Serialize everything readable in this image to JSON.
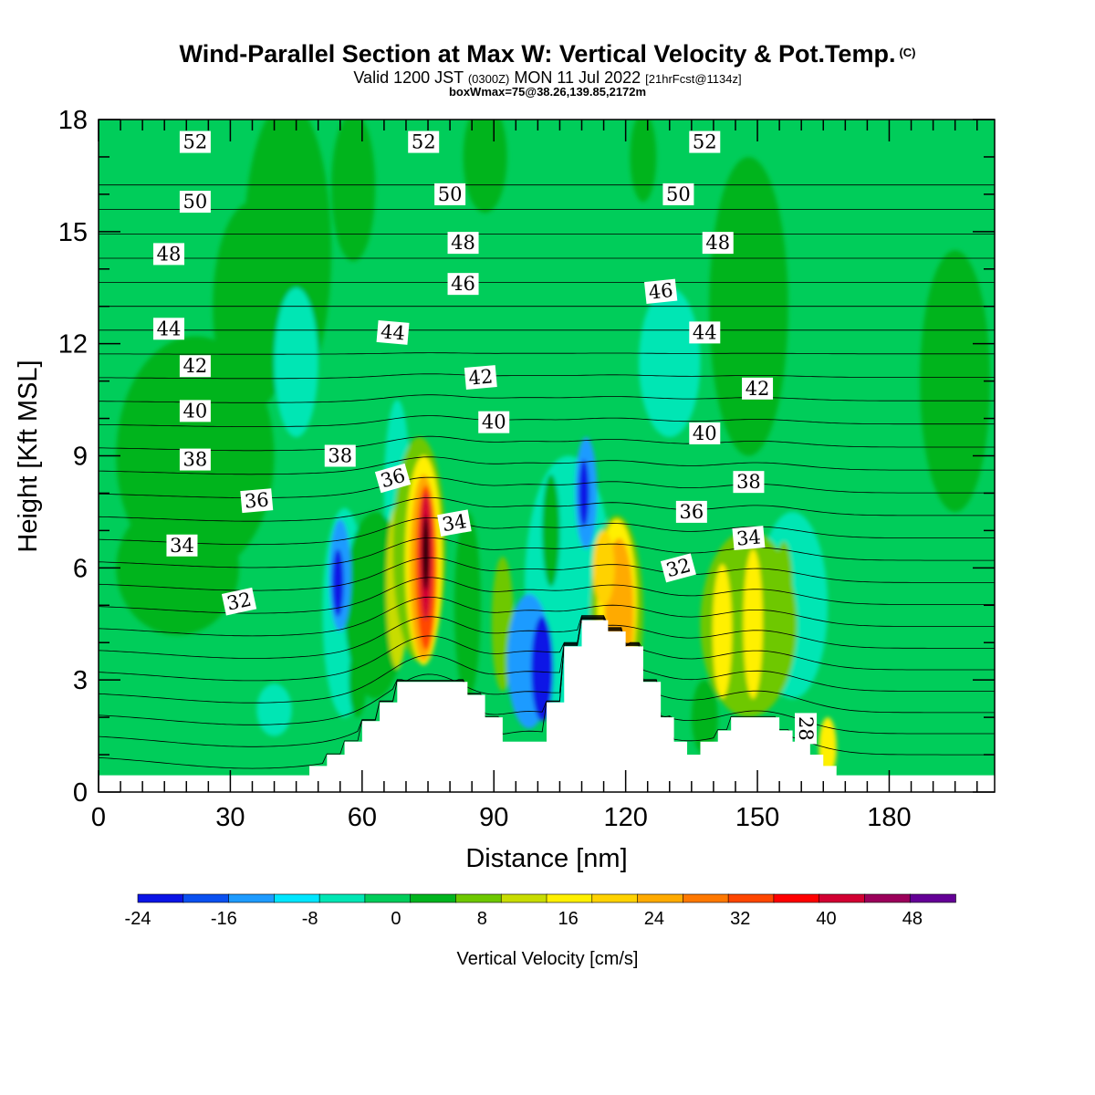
{
  "header": {
    "title_main": "Wind-Parallel Section at Max W: Vertical Velocity & Pot.Temp.",
    "title_c": "(C)",
    "subtitle_a": "Valid 1200 JST",
    "subtitle_b": "(0300Z)",
    "subtitle_c": "MON 11 Jul 2022",
    "subtitle_d": "[21hrFcst@1134z]",
    "subtitle2": "boxWmax=75@38.26,139.85,2172m"
  },
  "chart_data": {
    "type": "heatmap",
    "title": "Wind-Parallel Section at Max W: Vertical Velocity & Pot.Temp. (C)",
    "xlabel": "Distance [nm]",
    "ylabel": "Height [Kft MSL]",
    "xlim": [
      0,
      204
    ],
    "ylim": [
      0,
      18
    ],
    "xticks": [
      0,
      30,
      60,
      90,
      120,
      150,
      180
    ],
    "yticks": [
      0,
      3,
      6,
      9,
      12,
      15,
      18
    ],
    "colorbar": {
      "label": "Vertical Velocity [cm/s]",
      "ticks": [
        -24,
        -16,
        -8,
        0,
        8,
        16,
        24,
        32,
        40,
        48
      ],
      "levels": [
        -24,
        -20,
        -16,
        -12,
        -8,
        -4,
        0,
        4,
        8,
        12,
        16,
        20,
        24,
        28,
        32,
        36,
        40,
        44,
        48,
        52
      ],
      "colors": [
        "#0a14e6",
        "#0a50f0",
        "#1e9bff",
        "#00e6ff",
        "#00e6b4",
        "#00cd5a",
        "#00b41e",
        "#6ec800",
        "#c8dc00",
        "#fff000",
        "#ffd200",
        "#ffaa00",
        "#ff7800",
        "#ff4600",
        "#ff0000",
        "#d20032",
        "#9b005a",
        "#640096"
      ]
    },
    "background_color": "#00cd5a",
    "terrain": [
      [
        0,
        0.45
      ],
      [
        48,
        0.45
      ],
      [
        48,
        0.7
      ],
      [
        52,
        0.7
      ],
      [
        52,
        1.0
      ],
      [
        56,
        1.0
      ],
      [
        56,
        1.35
      ],
      [
        60,
        1.35
      ],
      [
        60,
        1.9
      ],
      [
        64,
        1.9
      ],
      [
        64,
        2.4
      ],
      [
        68,
        2.4
      ],
      [
        68,
        2.95
      ],
      [
        84,
        2.95
      ],
      [
        84,
        2.6
      ],
      [
        88,
        2.6
      ],
      [
        88,
        2.0
      ],
      [
        92,
        2.0
      ],
      [
        92,
        1.35
      ],
      [
        102,
        1.35
      ],
      [
        102,
        2.4
      ],
      [
        106,
        2.4
      ],
      [
        106,
        3.9
      ],
      [
        110,
        3.9
      ],
      [
        110,
        4.6
      ],
      [
        116,
        4.6
      ],
      [
        116,
        4.3
      ],
      [
        120,
        4.3
      ],
      [
        120,
        3.9
      ],
      [
        124,
        3.9
      ],
      [
        124,
        2.95
      ],
      [
        128,
        2.95
      ],
      [
        128,
        2.0
      ],
      [
        131,
        2.0
      ],
      [
        131,
        1.35
      ],
      [
        134,
        1.35
      ],
      [
        134,
        1.0
      ],
      [
        137,
        1.0
      ],
      [
        137,
        1.35
      ],
      [
        141,
        1.35
      ],
      [
        141,
        1.65
      ],
      [
        144,
        1.65
      ],
      [
        144,
        2.0
      ],
      [
        155,
        2.0
      ],
      [
        155,
        1.65
      ],
      [
        158,
        1.65
      ],
      [
        158,
        1.35
      ],
      [
        162,
        1.35
      ],
      [
        162,
        1.0
      ],
      [
        165,
        1.0
      ],
      [
        165,
        0.7
      ],
      [
        168,
        0.7
      ],
      [
        168,
        0.45
      ],
      [
        204,
        0.45
      ]
    ],
    "w_blobs": [
      {
        "x": 43,
        "y": 14.5,
        "rx": 10,
        "ry": 4.0,
        "v": 2
      },
      {
        "x": 22,
        "y": 9,
        "rx": 18,
        "ry": 3.2,
        "v": 2
      },
      {
        "x": 35,
        "y": 13,
        "rx": 9,
        "ry": 2.8,
        "v": 2
      },
      {
        "x": 18,
        "y": 6,
        "rx": 14,
        "ry": 1.8,
        "v": 2
      },
      {
        "x": 148,
        "y": 13,
        "rx": 9,
        "ry": 4.0,
        "v": 2
      },
      {
        "x": 195,
        "y": 11,
        "rx": 8,
        "ry": 3.5,
        "v": 2
      },
      {
        "x": 88,
        "y": 17,
        "rx": 5,
        "ry": 1.5,
        "v": 2
      },
      {
        "x": 124,
        "y": 17,
        "rx": 3,
        "ry": 1.2,
        "v": 2
      },
      {
        "x": 58,
        "y": 16.2,
        "rx": 5,
        "ry": 2.0,
        "v": 2
      },
      {
        "x": 45,
        "y": 11.5,
        "rx": 5,
        "ry": 2.0,
        "v": -6
      },
      {
        "x": 130,
        "y": 11.5,
        "rx": 7,
        "ry": 2.0,
        "v": -6
      },
      {
        "x": 68,
        "y": 8.0,
        "rx": 3,
        "ry": 2.5,
        "v": -6
      },
      {
        "x": 56,
        "y": 4.8,
        "rx": 5,
        "ry": 2.8,
        "v": -6
      },
      {
        "x": 40,
        "y": 2.2,
        "rx": 4,
        "ry": 0.7,
        "v": -6
      },
      {
        "x": 107,
        "y": 5.5,
        "rx": 10,
        "ry": 3.5,
        "v": -6
      },
      {
        "x": 158,
        "y": 5.0,
        "rx": 8,
        "ry": 2.5,
        "v": -6
      },
      {
        "x": 63,
        "y": 5.0,
        "rx": 7,
        "ry": 2.5,
        "v": 2
      },
      {
        "x": 68,
        "y": 5.5,
        "rx": 2.5,
        "ry": 2.2,
        "v": 10
      },
      {
        "x": 73,
        "y": 6.5,
        "rx": 6,
        "ry": 3.0,
        "v": 6
      },
      {
        "x": 74,
        "y": 6.2,
        "rx": 4.2,
        "ry": 2.8,
        "v": 14
      },
      {
        "x": 74,
        "y": 6.0,
        "rx": 3.2,
        "ry": 2.5,
        "v": 22
      },
      {
        "x": 74.5,
        "y": 6.0,
        "rx": 2.3,
        "ry": 2.2,
        "v": 30
      },
      {
        "x": 74.5,
        "y": 6.3,
        "rx": 1.4,
        "ry": 1.7,
        "v": 38
      },
      {
        "x": 74.5,
        "y": 6.4,
        "rx": 0.8,
        "ry": 1.0,
        "v": 48
      },
      {
        "x": 55,
        "y": 5.8,
        "rx": 2.5,
        "ry": 1.5,
        "v": -14
      },
      {
        "x": 54.5,
        "y": 5.6,
        "rx": 1.3,
        "ry": 0.9,
        "v": -22
      },
      {
        "x": 59,
        "y": 3.0,
        "rx": 2,
        "ry": 1.0,
        "v": 2
      },
      {
        "x": 84,
        "y": 5.0,
        "rx": 3,
        "ry": 2.5,
        "v": 2
      },
      {
        "x": 92,
        "y": 4.5,
        "rx": 2.5,
        "ry": 1.8,
        "v": 6
      },
      {
        "x": 98,
        "y": 3.5,
        "rx": 5,
        "ry": 1.8,
        "v": -14
      },
      {
        "x": 101,
        "y": 3.3,
        "rx": 2.5,
        "ry": 1.4,
        "v": -22
      },
      {
        "x": 111,
        "y": 8.0,
        "rx": 2.5,
        "ry": 1.5,
        "v": -14
      },
      {
        "x": 110.5,
        "y": 8.0,
        "rx": 1.2,
        "ry": 0.9,
        "v": -22
      },
      {
        "x": 103,
        "y": 7.0,
        "rx": 2,
        "ry": 1.5,
        "v": 2
      },
      {
        "x": 118,
        "y": 4.8,
        "rx": 6,
        "ry": 2.6,
        "v": 6
      },
      {
        "x": 118,
        "y": 5.0,
        "rx": 4.5,
        "ry": 2.3,
        "v": 14
      },
      {
        "x": 118.5,
        "y": 4.8,
        "rx": 3.3,
        "ry": 2.0,
        "v": 20
      },
      {
        "x": 115,
        "y": 6.0,
        "rx": 2.5,
        "ry": 1.0,
        "v": 18
      },
      {
        "x": 148,
        "y": 4.5,
        "rx": 11,
        "ry": 2.5,
        "v": 6
      },
      {
        "x": 142,
        "y": 4.3,
        "rx": 2.2,
        "ry": 1.8,
        "v": 14
      },
      {
        "x": 149,
        "y": 4.5,
        "rx": 2.2,
        "ry": 2.0,
        "v": 14
      },
      {
        "x": 156,
        "y": 5.5,
        "rx": 2,
        "ry": 1.2,
        "v": 6
      },
      {
        "x": 166,
        "y": 1.2,
        "rx": 2,
        "ry": 0.8,
        "v": 14
      },
      {
        "x": 138,
        "y": 2.0,
        "rx": 3,
        "ry": 1.0,
        "v": 2
      },
      {
        "x": 80,
        "y": 2.0,
        "rx": 4,
        "ry": 0.5,
        "v": 2
      }
    ],
    "theta_levels": [
      28,
      29,
      30,
      31,
      32,
      33,
      34,
      35,
      36,
      37,
      38,
      39,
      40,
      41,
      42,
      43,
      44,
      45,
      46,
      47,
      48,
      49,
      50,
      51,
      52,
      53
    ],
    "theta_labels": [
      {
        "text": "52",
        "x": 22,
        "y": 17.4,
        "rot": 0
      },
      {
        "text": "52",
        "x": 74,
        "y": 17.4,
        "rot": 0
      },
      {
        "text": "52",
        "x": 138,
        "y": 17.4,
        "rot": 0
      },
      {
        "text": "50",
        "x": 22,
        "y": 15.8,
        "rot": 0
      },
      {
        "text": "50",
        "x": 80,
        "y": 16.0,
        "rot": 0
      },
      {
        "text": "50",
        "x": 132,
        "y": 16.0,
        "rot": 0
      },
      {
        "text": "48",
        "x": 16,
        "y": 14.4,
        "rot": 0
      },
      {
        "text": "48",
        "x": 83,
        "y": 14.7,
        "rot": 0
      },
      {
        "text": "48",
        "x": 141,
        "y": 14.7,
        "rot": 0
      },
      {
        "text": "46",
        "x": 83,
        "y": 13.6,
        "rot": 0
      },
      {
        "text": "46",
        "x": 128,
        "y": 13.4,
        "rot": -6
      },
      {
        "text": "44",
        "x": 16,
        "y": 12.4,
        "rot": 0
      },
      {
        "text": "44",
        "x": 67,
        "y": 12.3,
        "rot": 5
      },
      {
        "text": "44",
        "x": 138,
        "y": 12.3,
        "rot": 0
      },
      {
        "text": "42",
        "x": 22,
        "y": 11.4,
        "rot": 0
      },
      {
        "text": "42",
        "x": 87,
        "y": 11.1,
        "rot": -5
      },
      {
        "text": "42",
        "x": 150,
        "y": 10.8,
        "rot": 0
      },
      {
        "text": "40",
        "x": 22,
        "y": 10.2,
        "rot": 0
      },
      {
        "text": "40",
        "x": 90,
        "y": 9.9,
        "rot": 0
      },
      {
        "text": "40",
        "x": 138,
        "y": 9.6,
        "rot": 0
      },
      {
        "text": "38",
        "x": 22,
        "y": 8.9,
        "rot": 0
      },
      {
        "text": "38",
        "x": 55,
        "y": 9.0,
        "rot": 0
      },
      {
        "text": "38",
        "x": 148,
        "y": 8.3,
        "rot": 0
      },
      {
        "text": "36",
        "x": 36,
        "y": 7.8,
        "rot": -5
      },
      {
        "text": "36",
        "x": 67,
        "y": 8.4,
        "rot": -16
      },
      {
        "text": "36",
        "x": 135,
        "y": 7.5,
        "rot": 0
      },
      {
        "text": "34",
        "x": 19,
        "y": 6.6,
        "rot": 0
      },
      {
        "text": "34",
        "x": 81,
        "y": 7.2,
        "rot": -10
      },
      {
        "text": "34",
        "x": 148,
        "y": 6.8,
        "rot": -5
      },
      {
        "text": "32",
        "x": 32,
        "y": 5.1,
        "rot": -12
      },
      {
        "text": "32",
        "x": 132,
        "y": 6.0,
        "rot": -15
      },
      {
        "text": "28",
        "x": 161,
        "y": 1.7,
        "rot": 90
      }
    ]
  }
}
